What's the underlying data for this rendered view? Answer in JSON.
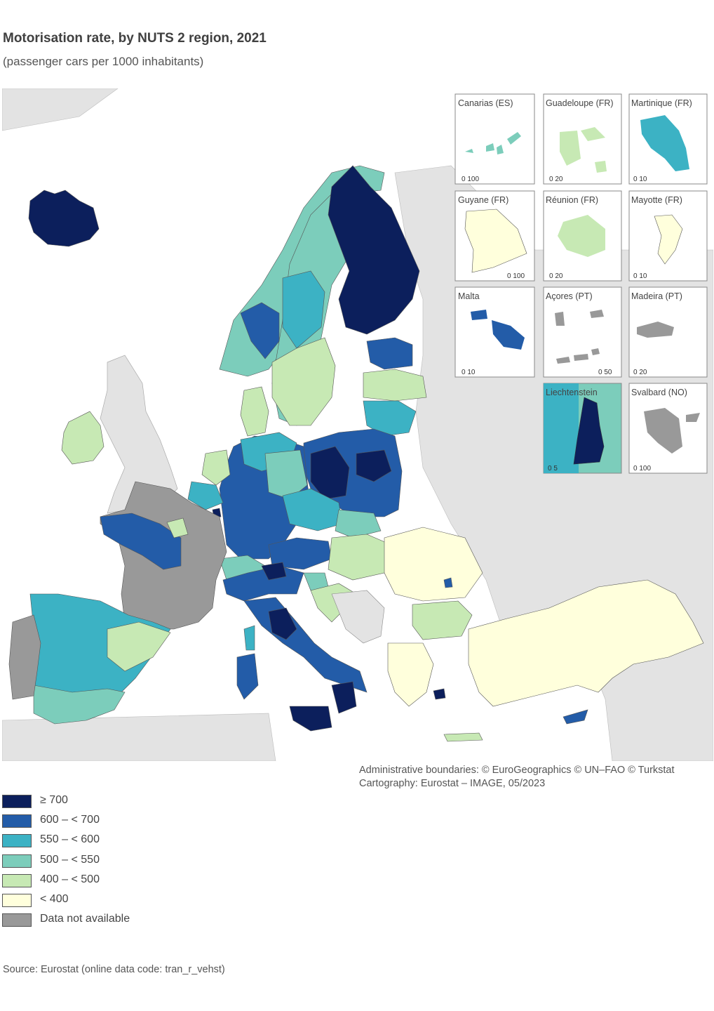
{
  "title": "Motorisation rate, by NUTS 2 region, 2021",
  "subtitle": "(passenger cars per 1000 inhabitants)",
  "colors": {
    "c700": "#0c1f5c",
    "c600": "#235ca8",
    "c550": "#3cb2c4",
    "c500": "#7ccdbb",
    "c400": "#c7e9b4",
    "c0": "#ffffdc",
    "na": "#999999",
    "nonEU": "#e3e3e3",
    "sea": "#ffffff"
  },
  "legend": [
    {
      "label": "≥ 700",
      "color": "#0c1f5c"
    },
    {
      "label": "600 – < 700",
      "color": "#235ca8"
    },
    {
      "label": "550 – < 600",
      "color": "#3cb2c4"
    },
    {
      "label": "500 – < 550",
      "color": "#7ccdbb"
    },
    {
      "label": "400 – < 500",
      "color": "#c7e9b4"
    },
    {
      "label": "< 400",
      "color": "#ffffdc"
    },
    {
      "label": "Data not available",
      "color": "#999999"
    }
  ],
  "insets": [
    {
      "name": "Canarias (ES)",
      "scale": "0   100"
    },
    {
      "name": "Guadeloupe (FR)",
      "scale": "0   20"
    },
    {
      "name": "Martinique (FR)",
      "scale": "0   10"
    },
    {
      "name": "Guyane (FR)",
      "scale": "0   100"
    },
    {
      "name": "Réunion (FR)",
      "scale": "0   20"
    },
    {
      "name": "Mayotte (FR)",
      "scale": "0   10"
    },
    {
      "name": "Malta",
      "scale": "0   10"
    },
    {
      "name": "Açores (PT)",
      "scale": "0   50"
    },
    {
      "name": "Madeira (PT)",
      "scale": "0   20"
    },
    {
      "name": "Liechtenstein",
      "scale": "0   5"
    },
    {
      "name": "Svalbard (NO)",
      "scale": "0   100"
    }
  ],
  "credits": {
    "line1": "Administrative boundaries: © EuroGeographics © UN–FAO © Turkstat",
    "line2": "Cartography: Eurostat – IMAGE, 05/2023"
  },
  "source": "Source: Eurostat (online data code: tran_r_vehst)"
}
